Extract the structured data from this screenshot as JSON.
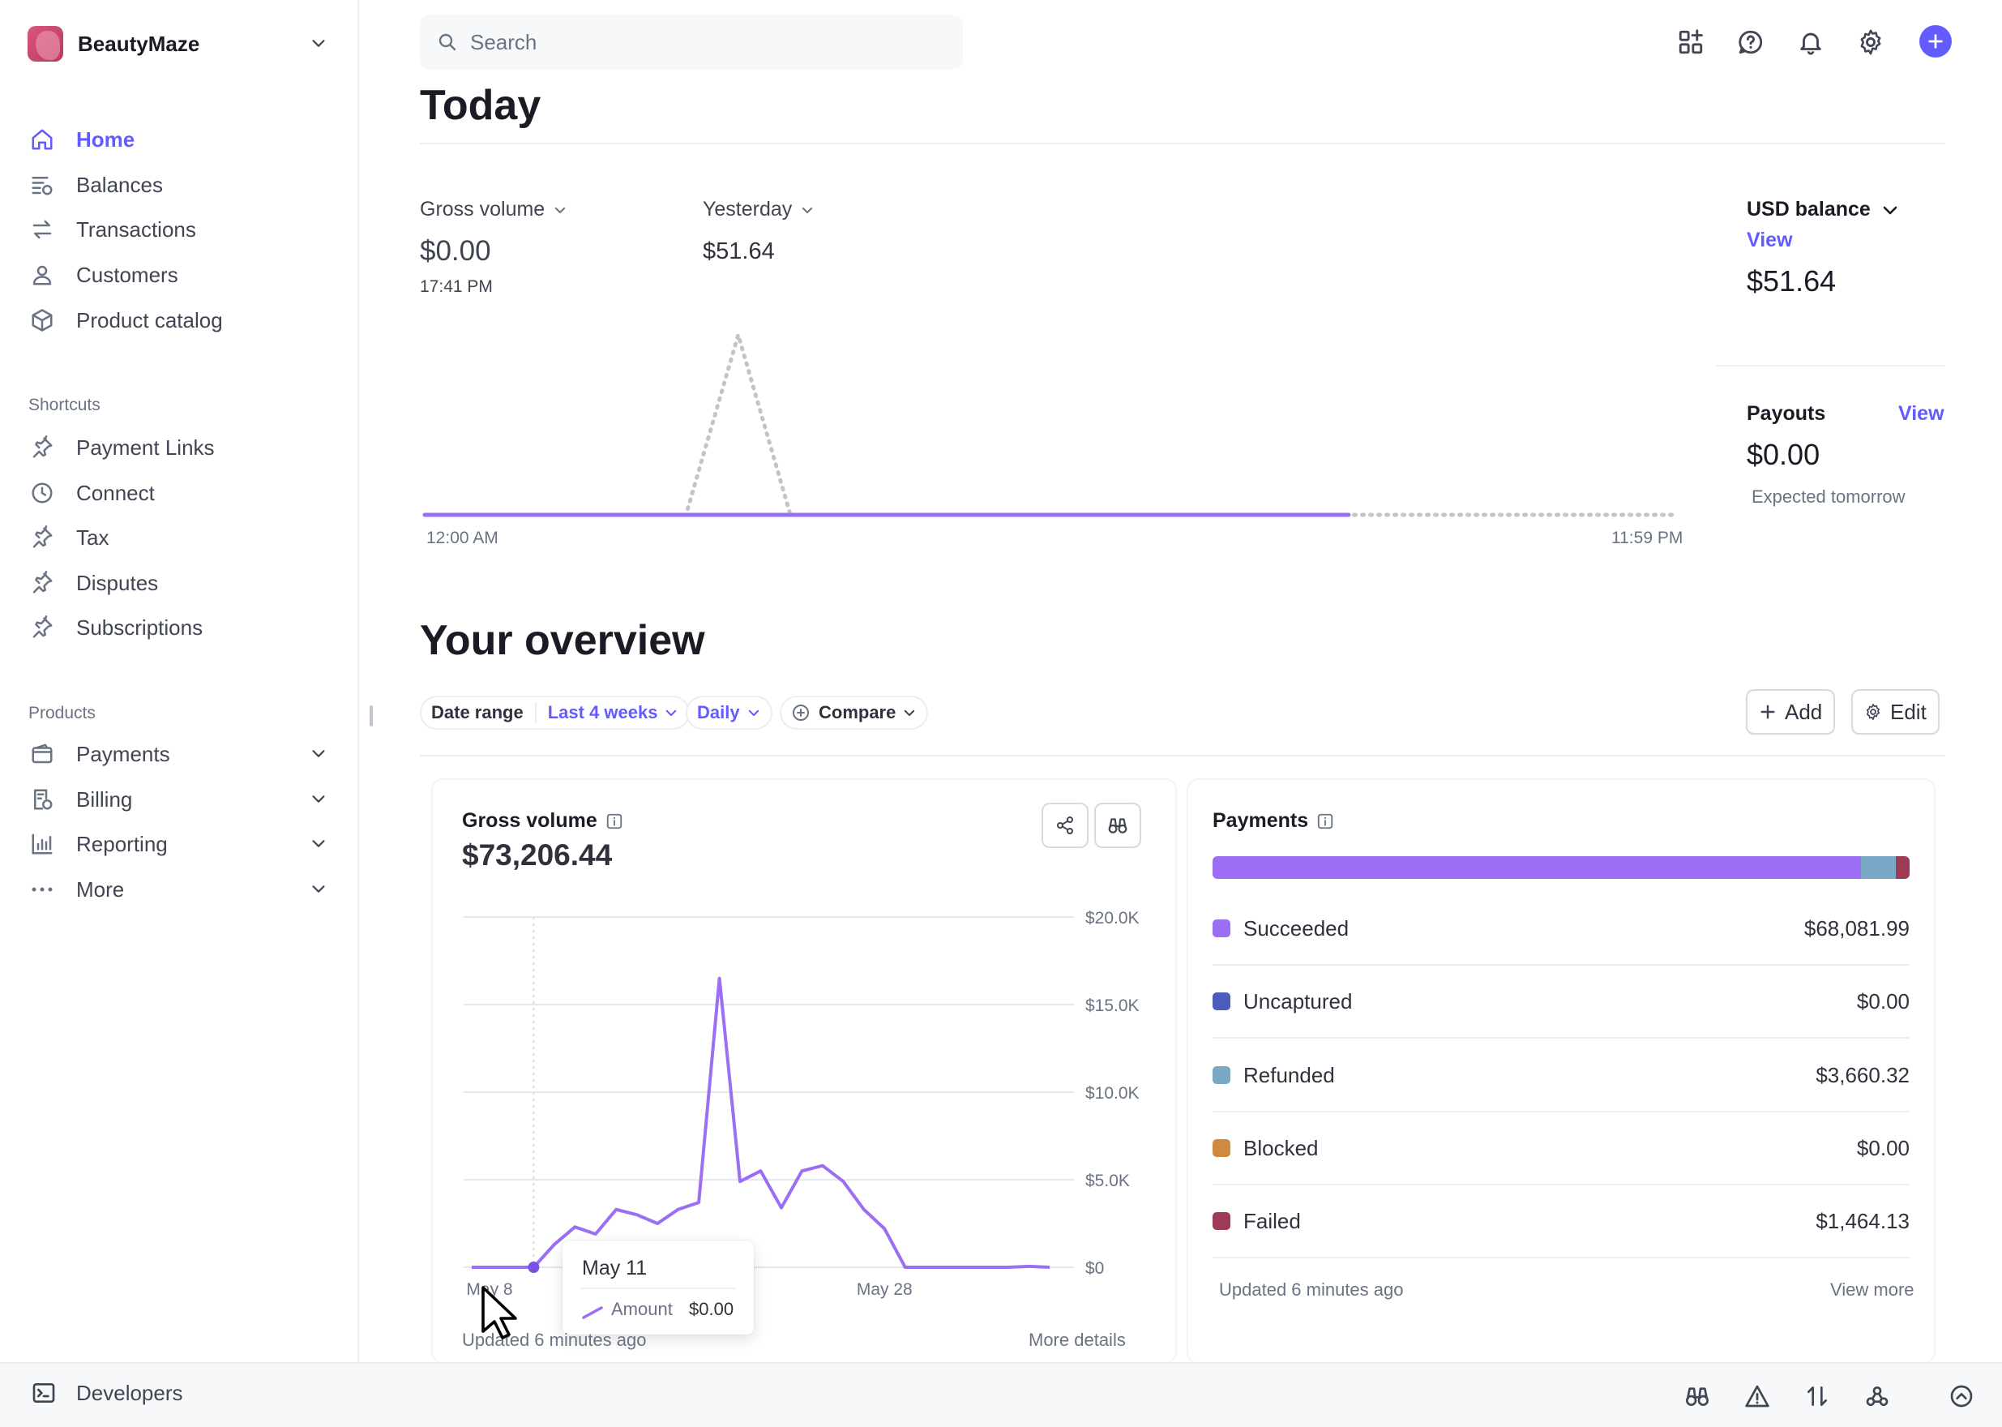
{
  "sidebar": {
    "account": "BeautyMaze",
    "nav": [
      {
        "label": "Home",
        "icon": "home-icon"
      },
      {
        "label": "Balances",
        "icon": "balances-icon"
      },
      {
        "label": "Transactions",
        "icon": "transactions-icon"
      },
      {
        "label": "Customers",
        "icon": "customers-icon"
      },
      {
        "label": "Product catalog",
        "icon": "product-catalog-icon"
      }
    ],
    "shortcuts_title": "Shortcuts",
    "shortcuts": [
      {
        "label": "Payment Links",
        "icon": "pin-icon"
      },
      {
        "label": "Connect",
        "icon": "clock-icon"
      },
      {
        "label": "Tax",
        "icon": "pin-icon"
      },
      {
        "label": "Disputes",
        "icon": "pin-icon"
      },
      {
        "label": "Subscriptions",
        "icon": "pin-icon"
      }
    ],
    "products_title": "Products",
    "products": [
      {
        "label": "Payments",
        "icon": "wallet-icon"
      },
      {
        "label": "Billing",
        "icon": "billing-icon"
      },
      {
        "label": "Reporting",
        "icon": "reporting-icon"
      },
      {
        "label": "More",
        "icon": "more-dots-icon"
      }
    ]
  },
  "topbar": {
    "search_placeholder": "Search",
    "icons": [
      "apps-icon",
      "help-icon",
      "bell-icon",
      "gear-icon",
      "plus-icon"
    ]
  },
  "today": {
    "title": "Today",
    "gross_volume_label": "Gross volume",
    "gross_volume_value": "$0.00",
    "gross_volume_time": "17:41 PM",
    "yesterday_label": "Yesterday",
    "yesterday_value": "$51.64",
    "axis_start": "12:00 AM",
    "axis_end": "11:59 PM",
    "usd_balance_label": "USD balance",
    "usd_balance_link": "View",
    "usd_balance_value": "$51.64",
    "payouts_label": "Payouts",
    "payouts_link": "View",
    "payouts_value": "$0.00",
    "payouts_sub": "Expected tomorrow"
  },
  "overview": {
    "title": "Your overview",
    "filters": {
      "date_range_label": "Date range",
      "date_range_value": "Last 4 weeks",
      "interval": "Daily",
      "compare": "Compare"
    },
    "add_button": "Add",
    "edit_button": "Edit",
    "gross_card": {
      "title": "Gross volume",
      "total": "$73,206.44",
      "footer_updated": "Updated 6 minutes ago",
      "footer_link": "More details",
      "tooltip_date": "May 11",
      "tooltip_series": "Amount",
      "tooltip_value": "$0.00"
    },
    "payments_card": {
      "title": "Payments",
      "rows": [
        {
          "label": "Succeeded",
          "value": "$68,081.99",
          "color": "#9b6ef3"
        },
        {
          "label": "Uncaptured",
          "value": "$0.00",
          "color": "#4b5bbf"
        },
        {
          "label": "Refunded",
          "value": "$3,660.32",
          "color": "#7aa8c7"
        },
        {
          "label": "Blocked",
          "value": "$0.00",
          "color": "#d08a3e"
        },
        {
          "label": "Failed",
          "value": "$1,464.13",
          "color": "#9e3a56"
        }
      ],
      "footer_updated": "Updated 6 minutes ago",
      "footer_link": "View more"
    }
  },
  "devbar": {
    "label": "Developers"
  },
  "colors": {
    "accent": "#635bff",
    "line": "#9b6ef3"
  },
  "chart_data": [
    {
      "type": "line",
      "title": "Gross volume",
      "series": [
        {
          "name": "Today",
          "x": [
            "00:00",
            "04:00",
            "06:00",
            "08:00",
            "10:00",
            "12:00",
            "16:00",
            "17:41"
          ],
          "values": [
            0,
            0,
            0,
            0,
            0,
            0,
            0,
            0
          ]
        },
        {
          "name": "Yesterday",
          "x": [
            "00:00",
            "04:00",
            "05:00",
            "06:00",
            "07:00",
            "08:00",
            "12:00",
            "18:00",
            "23:59"
          ],
          "values": [
            0,
            0,
            0,
            51.64,
            0,
            0,
            0,
            0,
            0
          ]
        }
      ],
      "xlabels": [
        "12:00 AM",
        "11:59 PM"
      ]
    },
    {
      "type": "line",
      "title": "Gross volume",
      "total": "$73,206.44",
      "ylim": [
        0,
        20000
      ],
      "yticks": [
        "$0",
        "$5.0K",
        "$10.0K",
        "$15.0K",
        "$20.0K"
      ],
      "xticks": [
        "May 8",
        "May 28"
      ],
      "series": [
        {
          "name": "Amount",
          "values": [
            0,
            0,
            0,
            0,
            1300,
            2300,
            1900,
            3300,
            3000,
            2500,
            3300,
            3700,
            16500,
            4900,
            5500,
            3400,
            5500,
            5800,
            4900,
            3300,
            2200,
            0,
            0,
            0,
            0,
            0,
            0,
            50,
            0
          ]
        }
      ]
    }
  ]
}
